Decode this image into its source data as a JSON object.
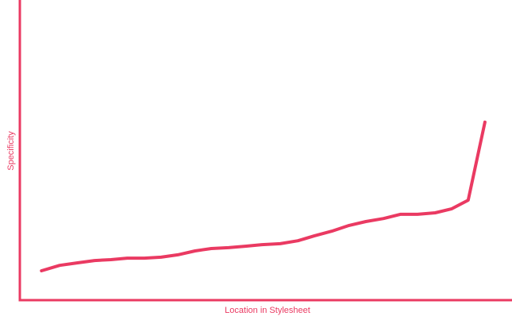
{
  "chart_data": {
    "type": "line",
    "x_label": "Location in Stylesheet",
    "y_label": "Specificity",
    "color": "#ea3a62",
    "x": [
      4.4,
      8.1,
      11.6,
      15.2,
      18.5,
      21.8,
      25.3,
      28.7,
      32.1,
      35.6,
      38.9,
      42.4,
      46.0,
      49.2,
      52.9,
      56.5,
      59.8,
      63.4,
      66.9,
      70.3,
      73.9,
      77.3,
      80.8,
      84.4,
      87.7,
      91.1,
      94.5
    ],
    "values": [
      9.8,
      11.6,
      12.4,
      13.2,
      13.5,
      14.0,
      14.0,
      14.3,
      15.1,
      16.4,
      17.2,
      17.5,
      18.0,
      18.5,
      18.8,
      19.8,
      21.4,
      23.0,
      24.9,
      26.2,
      27.2,
      28.6,
      28.6,
      29.1,
      30.4,
      33.3,
      59.3
    ],
    "xlim": [
      0,
      100
    ],
    "ylim": [
      0,
      100
    ]
  }
}
